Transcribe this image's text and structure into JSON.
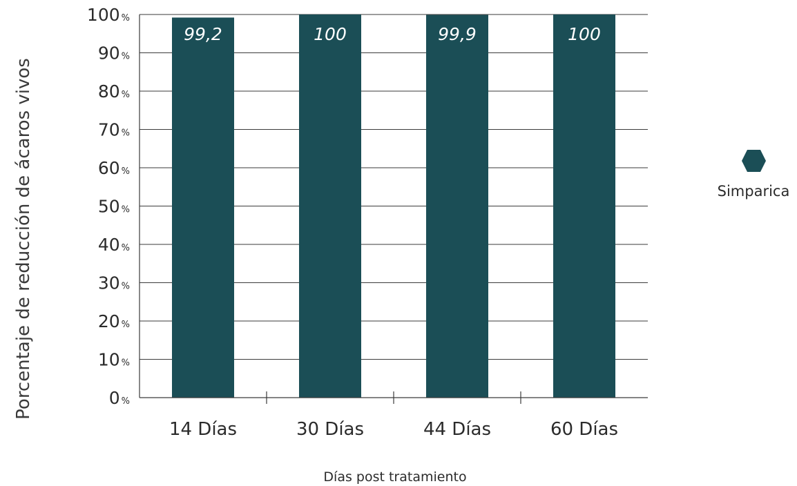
{
  "chart_data": {
    "type": "bar",
    "title": "",
    "xlabel": "Días post tratamiento",
    "ylabel": "Porcentaje de reducción de ácaros vivos",
    "categories": [
      "14 Días",
      "30 Días",
      "44 Días",
      "60 Días"
    ],
    "series": [
      {
        "name": "Simparica",
        "values": [
          99.2,
          100,
          99.9,
          100
        ],
        "labels": [
          "99,2",
          "100",
          "99,9",
          "100"
        ]
      }
    ],
    "ylim": [
      0,
      100
    ],
    "yticks": [
      0,
      10,
      20,
      30,
      40,
      50,
      60,
      70,
      80,
      90,
      100
    ],
    "ytick_suffix": "%",
    "grid": true,
    "legend": "right",
    "colors": {
      "bar": "#1b4e56",
      "grid": "#3a3a3a",
      "text": "#2b2b2b"
    }
  }
}
